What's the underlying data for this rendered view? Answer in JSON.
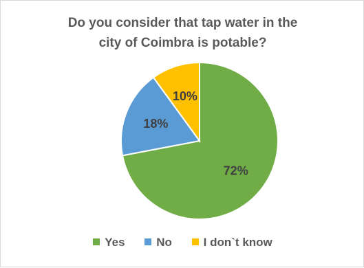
{
  "chart_data": {
    "type": "pie",
    "title_lines": [
      "Do you consider that tap water in the",
      "city of Coimbra is potable?"
    ],
    "categories": [
      "Yes",
      "No",
      "I don`t know"
    ],
    "values": [
      72,
      18,
      10
    ],
    "labels": [
      "72%",
      "18%",
      "10%"
    ],
    "colors": [
      "#70ad47",
      "#5b9bd5",
      "#ffc000"
    ],
    "legend_position": "bottom"
  }
}
